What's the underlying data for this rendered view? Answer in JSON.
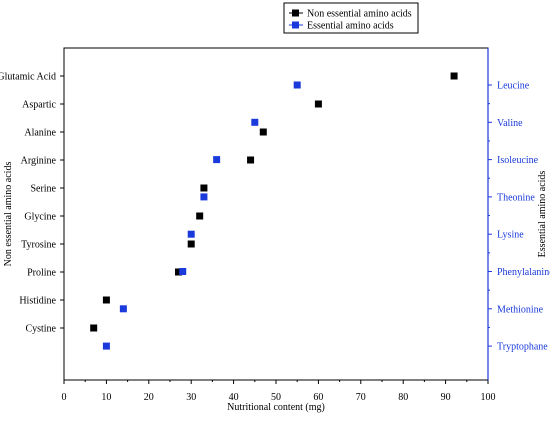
{
  "chart_data": {
    "type": "scatter",
    "xlabel": "Nutritional content (mg)",
    "ylabel_left": "Non essential amino acids",
    "ylabel_right": "Essential amino acids",
    "xlim": [
      0,
      100
    ],
    "x_ticks": [
      "0",
      "10",
      "20",
      "30",
      "40",
      "50",
      "60",
      "70",
      "80",
      "90",
      "100"
    ],
    "grid": false,
    "legend_position": "top-center",
    "left_categories": [
      "Glutamic Acid",
      "Aspartic",
      "Alanine",
      "Arginine",
      "Serine",
      "Glycine",
      "Tyrosine",
      "Proline",
      "Histidine",
      "Cystine"
    ],
    "right_categories": [
      "Leucine",
      "Valine",
      "Isoleucine",
      "Theonine",
      "Lysine",
      "Phenylalanine",
      "Methionine",
      "Tryptophane"
    ],
    "series": [
      {
        "name": "Non essential amino acids",
        "color": "#000000",
        "axis": "left",
        "points": [
          {
            "category": "Glutamic Acid",
            "x": 92
          },
          {
            "category": "Aspartic",
            "x": 60
          },
          {
            "category": "Alanine",
            "x": 47
          },
          {
            "category": "Arginine",
            "x": 44
          },
          {
            "category": "Serine",
            "x": 33
          },
          {
            "category": "Glycine",
            "x": 32
          },
          {
            "category": "Tyrosine",
            "x": 30
          },
          {
            "category": "Proline",
            "x": 27
          },
          {
            "category": "Histidine",
            "x": 10
          },
          {
            "category": "Cystine",
            "x": 7
          }
        ]
      },
      {
        "name": "Essential amino acids",
        "color": "#1a3adb",
        "axis": "right",
        "points": [
          {
            "category": "Leucine",
            "x": 55
          },
          {
            "category": "Valine",
            "x": 45
          },
          {
            "category": "Isoleucine",
            "x": 36
          },
          {
            "category": "Theonine",
            "x": 33
          },
          {
            "category": "Lysine",
            "x": 30
          },
          {
            "category": "Phenylalanine",
            "x": 28
          },
          {
            "category": "Methionine",
            "x": 14
          },
          {
            "category": "Tryptophane",
            "x": 10
          }
        ]
      }
    ]
  }
}
